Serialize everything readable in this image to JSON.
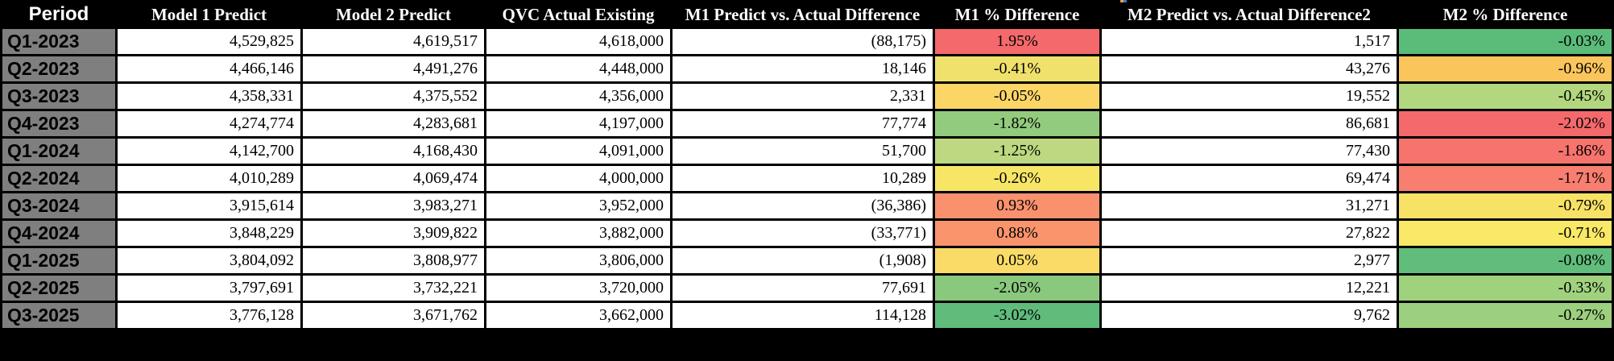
{
  "table": {
    "header": {
      "period": "Period",
      "m1_predict": "Model 1 Predict",
      "m2_predict": "Model 2 Predict",
      "qvc_actual": "QVC Actual Existing",
      "m1_diff": "M1 Predict vs. Actual Difference",
      "m1_pct": "M1 % Difference",
      "m2_diff": "M2 Predict vs. Actual Difference2",
      "m2_pct": "M2 % Difference"
    },
    "styles": {
      "header_bg": "#000000",
      "header_text": "#FFFFFF",
      "period_cell_bg": "#7F7F7F",
      "cell_bg": "#FFFFFF",
      "grid_color": "#000000",
      "header_divider": "#FFFFFF"
    },
    "rows": [
      {
        "period": "Q1-2023",
        "m1_predict": "4,529,825",
        "m2_predict": "4,619,517",
        "qvc_actual": "4,618,000",
        "m1_diff": "(88,175)",
        "m1_pct": "1.95%",
        "m1_pct_color": "#F4696B",
        "m2_diff": "1,517",
        "m2_pct": "-0.03%",
        "m2_pct_color": "#5BBC7A"
      },
      {
        "period": "Q2-2023",
        "m1_predict": "4,466,146",
        "m2_predict": "4,491,276",
        "qvc_actual": "4,448,000",
        "m1_diff": "18,146",
        "m1_pct": "-0.41%",
        "m1_pct_color": "#F0E16D",
        "m2_diff": "43,276",
        "m2_pct": "-0.96%",
        "m2_pct_color": "#FAC65C"
      },
      {
        "period": "Q3-2023",
        "m1_predict": "4,358,331",
        "m2_predict": "4,375,552",
        "qvc_actual": "4,356,000",
        "m1_diff": "2,331",
        "m1_pct": "-0.05%",
        "m1_pct_color": "#FBD666",
        "m2_diff": "19,552",
        "m2_pct": "-0.45%",
        "m2_pct_color": "#B3D77F"
      },
      {
        "period": "Q4-2023",
        "m1_predict": "4,274,774",
        "m2_predict": "4,283,681",
        "qvc_actual": "4,197,000",
        "m1_diff": "77,774",
        "m1_pct": "-1.82%",
        "m1_pct_color": "#92CB7D",
        "m2_diff": "86,681",
        "m2_pct": "-2.02%",
        "m2_pct_color": "#F4696B"
      },
      {
        "period": "Q1-2024",
        "m1_predict": "4,142,700",
        "m2_predict": "4,168,430",
        "qvc_actual": "4,091,000",
        "m1_diff": "51,700",
        "m1_pct": "-1.25%",
        "m1_pct_color": "#BDD880",
        "m2_diff": "77,430",
        "m2_pct": "-1.86%",
        "m2_pct_color": "#F7736D"
      },
      {
        "period": "Q2-2024",
        "m1_predict": "4,010,289",
        "m2_predict": "4,069,474",
        "qvc_actual": "4,000,000",
        "m1_diff": "10,289",
        "m1_pct": "-0.26%",
        "m1_pct_color": "#F7E666",
        "m2_diff": "69,474",
        "m2_pct": "-1.71%",
        "m2_pct_color": "#F87E6F"
      },
      {
        "period": "Q3-2024",
        "m1_predict": "3,915,614",
        "m2_predict": "3,983,271",
        "qvc_actual": "3,952,000",
        "m1_diff": "(36,386)",
        "m1_pct": "0.93%",
        "m1_pct_color": "#F9916E",
        "m2_diff": "31,271",
        "m2_pct": "-0.79%",
        "m2_pct_color": "#F7E266"
      },
      {
        "period": "Q4-2024",
        "m1_predict": "3,848,229",
        "m2_predict": "3,909,822",
        "qvc_actual": "3,882,000",
        "m1_diff": "(33,771)",
        "m1_pct": "0.88%",
        "m1_pct_color": "#F9946D",
        "m2_diff": "27,822",
        "m2_pct": "-0.71%",
        "m2_pct_color": "#FAE967"
      },
      {
        "period": "Q1-2025",
        "m1_predict": "3,804,092",
        "m2_predict": "3,808,977",
        "qvc_actual": "3,806,000",
        "m1_diff": "(1,908)",
        "m1_pct": "0.05%",
        "m1_pct_color": "#FADB68",
        "m2_diff": "2,977",
        "m2_pct": "-0.08%",
        "m2_pct_color": "#60BD7B"
      },
      {
        "period": "Q2-2025",
        "m1_predict": "3,797,691",
        "m2_predict": "3,732,221",
        "qvc_actual": "3,720,000",
        "m1_diff": "77,691",
        "m1_pct": "-2.05%",
        "m1_pct_color": "#8AC87D",
        "m2_diff": "12,221",
        "m2_pct": "-0.33%",
        "m2_pct_color": "#A0D27E"
      },
      {
        "period": "Q3-2025",
        "m1_predict": "3,776,128",
        "m2_predict": "3,671,762",
        "qvc_actual": "3,662,000",
        "m1_diff": "114,128",
        "m1_pct": "-3.02%",
        "m1_pct_color": "#5FBC7B",
        "m2_diff": "9,762",
        "m2_pct": "-0.27%",
        "m2_pct_color": "#9CD07E"
      }
    ]
  },
  "artifact": {
    "description": "tiny cut-off colored fragment at top edge",
    "colors": [
      "#E8A33D",
      "#4472C4"
    ]
  }
}
